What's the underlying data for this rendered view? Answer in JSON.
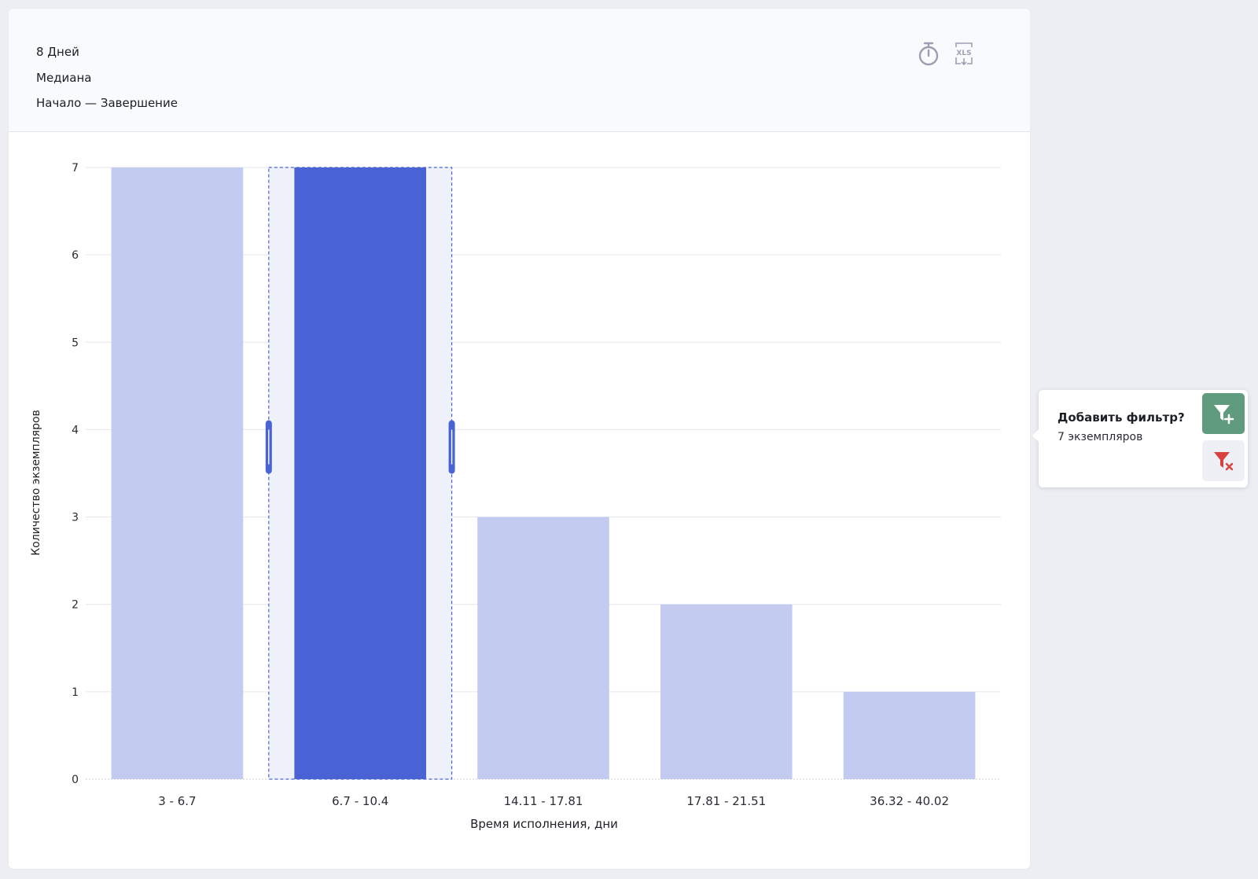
{
  "header": {
    "line1": "8 Дней",
    "line2": "Медиана",
    "line3": "Начало — Завершение"
  },
  "toolbar": {
    "timer_icon": "stopwatch-icon",
    "export_icon": "xls-export-icon",
    "export_label": "XLS"
  },
  "chart_data": {
    "type": "bar",
    "categories": [
      "3 - 6.7",
      "6.7 - 10.4",
      "14.11 - 17.81",
      "17.81 - 21.51",
      "36.32 - 40.02"
    ],
    "values": [
      7,
      7,
      3,
      2,
      1
    ],
    "selected_index": 1,
    "xlabel": "Время исполнения, дни",
    "ylabel": "Количество экземпляров",
    "ylim": [
      0,
      7
    ],
    "yticks": [
      0,
      1,
      2,
      3,
      4,
      5,
      6,
      7
    ],
    "grid": true,
    "colors": {
      "bar": "#c4cbf0",
      "selected": "#4962d4",
      "selection_bg": "#eef0fa",
      "grid": "#e4e6ee"
    }
  },
  "filter_popup": {
    "title": "Добавить фильтр?",
    "count_text": "7 экземпляров",
    "add_icon": "filter-add-icon",
    "clear_icon": "filter-clear-icon",
    "colors": {
      "add_bg": "#5f9b7c",
      "clear_icon": "#d9433f"
    }
  }
}
